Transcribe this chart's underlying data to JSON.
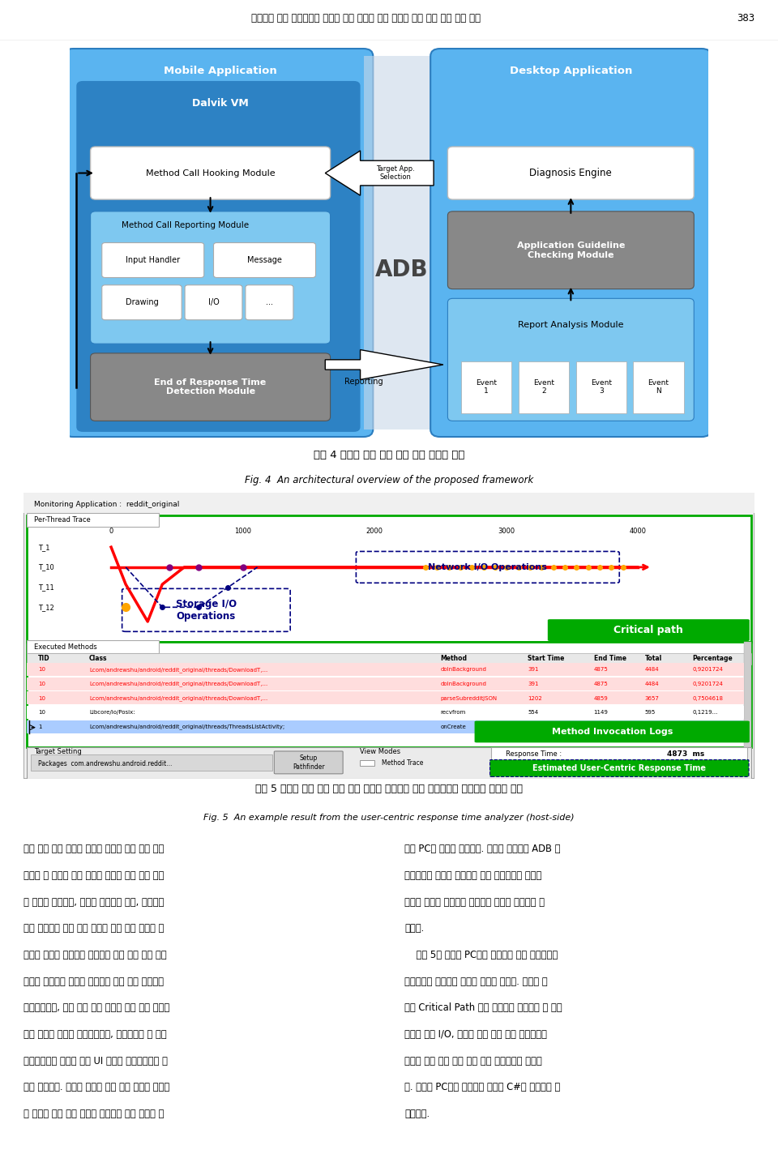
{
  "page_title": "스마트폰 응용 프로그램의 사용자 경험 향상을 위한 사용자 중심 반응 시간 분석 도구",
  "page_number": "383",
  "fig4_caption_korean": "그림 4 사용자 중심 반응 시간 분석 도구의 구조",
  "fig4_caption_english": "Fig. 4  An architectural overview of the proposed framework",
  "fig5_caption_korean": "그림 5 사용자 중심 반응 시간 분석 도구가 스마트폰 응용 개발자에게 전달하는 정보의 예시",
  "fig5_caption_english": "Fig. 5  An example result from the user-centric response time analyzer (host-side)",
  "body_text_left": "용자 중심 반응 시간의 판별과 연관이 있는 모든 메소\n드들을 그 호출과 반환 시점에 메소드 호출 후킹 모듈\n에 의하여 감지되고, 호출한 메소드의 종류, 메소드와\n함께 전달되는 인자 등이 메소드 호출 기록 모듈에 전\n달되며 이러한 정보들을 종합하여 반응 시간 종료 판단\n모듈은 사용자의 입력을 처리하기 위한 콜백 메소드가\n종료되었는지, 또한 이로 인해 작업을 위임 받은 쓰레드\n들이 자신의 작업을 완료하였는지, 마지막으로 각 실행\n흐름으로부터 발생한 모든 UI 갱신이 완료되었는지 여\n부를 판별한다. 사용자 중심의 반응 완료 시점이 감지되\n면 메소드 호출 기록 모듈에 저장되어 있는 정보를 호",
  "body_text_right": "스트 PC의 응용에 전달한다. 이러한 정보들은 ADB 인\n터페이스를 통하여 전달되며 실제 사용자에게 유용한\n정보의 형태로 가공하여 보여주는 역할은 이곳에서 담\n당한다.\n    그림 5는 호스트 PC에서 동작하는 응용 프로그램이\n개발자에게 보여주는 정보를 나타낸 것이다. 위에서 언\n급한 Critical Path 정보 이외에도 네트워크 및 저장\n장치에 대한 I/O, 사용자 중심 반응 완료 시점까지의\n메소드 호출 기록 정보 등을 함께 개발자에게 제공한\n다. 호스트 PC에서 동작하는 응용은 C#을 이용하여 구\n현하였다."
}
